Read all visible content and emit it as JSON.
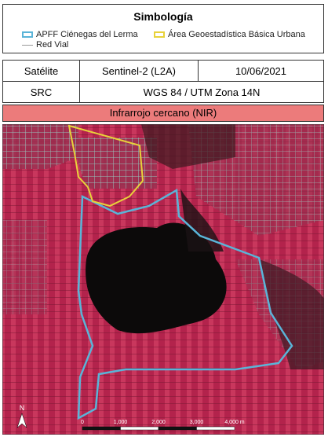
{
  "legend": {
    "title": "Simbología",
    "items": [
      {
        "label": "APFF Ciénegas del Lerma"
      },
      {
        "label": "Área Geoestadística Básica Urbana"
      },
      {
        "label": "Red Vial"
      }
    ]
  },
  "table": {
    "rows": [
      [
        "Satélite",
        "Sentinel-2 (L2A)",
        "10/06/2021"
      ],
      [
        "SRC",
        "WGS 84 / UTM Zona 14N"
      ]
    ]
  },
  "band": "Infrarrojo cercano (NIR)",
  "map": {
    "north": "N",
    "scale_labels": [
      "0",
      "1,000",
      "2,000",
      "3,000",
      "4,000 m"
    ]
  }
}
